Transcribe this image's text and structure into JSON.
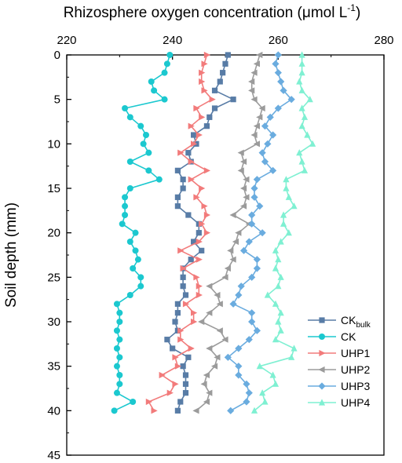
{
  "chart_data": {
    "type": "line",
    "title": "",
    "xlabel": "Rhizosphere oxygen concentration (μmol L⁻¹)",
    "xlabel_parts": {
      "main": "Rhizosphere oxygen concentration (μmol L",
      "sup": "-1",
      "end": ")"
    },
    "ylabel": "Soil depth (mm)",
    "xlim": [
      220,
      280
    ],
    "ylim": [
      0,
      45
    ],
    "y_inverted": true,
    "x_axis_position": "top",
    "x_ticks": [
      "220",
      "240",
      "260",
      "280"
    ],
    "y_ticks": [
      "0",
      "5",
      "10",
      "15",
      "20",
      "25",
      "30",
      "35",
      "40",
      "45"
    ],
    "grid": false,
    "legend_position": "bottom-right",
    "depth": [
      0,
      1,
      2,
      3,
      4,
      5,
      6,
      7,
      8,
      9,
      10,
      11,
      12,
      13,
      14,
      15,
      16,
      17,
      18,
      19,
      20,
      21,
      22,
      23,
      24,
      25,
      26,
      27,
      28,
      29,
      30,
      31,
      32,
      33,
      34,
      35,
      36,
      37,
      38,
      39,
      40
    ],
    "series": [
      {
        "name": "CK_bulk",
        "legend_main": "CK",
        "legend_sub": "bulk",
        "color": "#587ca6",
        "marker": "square",
        "values": [
          250.5,
          250,
          249.5,
          249,
          248,
          251.5,
          248,
          247,
          246.5,
          244,
          244.5,
          243,
          243.5,
          241,
          242,
          242,
          241,
          241,
          243,
          245,
          245,
          244,
          245.5,
          243.5,
          242,
          242,
          242,
          242.5,
          241,
          241,
          240.5,
          241,
          239,
          240,
          243,
          242,
          242.5,
          242.5,
          242.5,
          241.5,
          241
        ]
      },
      {
        "name": "CK",
        "legend_main": "CK",
        "legend_sub": "",
        "color": "#1bc8cf",
        "marker": "circle",
        "values": [
          239.5,
          239,
          238.5,
          236,
          236.5,
          238.5,
          231,
          232,
          234,
          235,
          234.5,
          235.5,
          232,
          235.5,
          237.5,
          232,
          231,
          231,
          231,
          230.5,
          233,
          232,
          233,
          233.5,
          232.5,
          234,
          234,
          232,
          229.5,
          230,
          230,
          229.5,
          230,
          229.5,
          230,
          229.5,
          230,
          230,
          229.5,
          232.5,
          229
        ]
      },
      {
        "name": "UHP1",
        "legend_main": "UHP1",
        "legend_sub": "",
        "color": "#f27b7b",
        "marker": "triangle-right",
        "values": [
          246.5,
          246,
          245.5,
          245.5,
          246,
          247.5,
          244.5,
          245.5,
          243.5,
          245,
          244,
          241.5,
          243.5,
          246.5,
          243.5,
          245.5,
          244.5,
          246,
          246.5,
          245.5,
          246.5,
          245,
          241.5,
          245,
          242,
          244.5,
          245,
          245,
          242.5,
          244,
          244,
          241.5,
          241.5,
          243.5,
          240.5,
          241,
          238,
          240.5,
          239.5,
          235.5,
          236.5
        ]
      },
      {
        "name": "UHP2",
        "legend_main": "UHP2",
        "legend_sub": "",
        "color": "#9b9b9b",
        "marker": "triangle-left",
        "values": [
          256.5,
          256,
          255.5,
          255,
          255,
          255.5,
          257,
          256.5,
          256,
          255.5,
          256,
          253,
          253.5,
          253,
          254,
          253.5,
          254,
          253.5,
          251.5,
          254.5,
          252.5,
          252,
          251,
          251.5,
          250.5,
          250,
          247,
          248.5,
          249,
          247,
          245.5,
          249,
          250,
          247,
          248.5,
          248,
          246.5,
          246,
          247,
          246.5,
          244.5
        ]
      },
      {
        "name": "UHP3",
        "legend_main": "UHP3",
        "legend_sub": "",
        "color": "#6aacdf",
        "marker": "diamond",
        "values": [
          260,
          259.5,
          260,
          260.5,
          261,
          262.5,
          260,
          258.5,
          257.5,
          259,
          258,
          257,
          257.5,
          259,
          256,
          255.5,
          255.5,
          256.5,
          255,
          255,
          257,
          254.5,
          253.5,
          256,
          256,
          255,
          253,
          252.5,
          251.5,
          255,
          255,
          256,
          254.5,
          252.5,
          250.5,
          252.5,
          252.5,
          254,
          254.5,
          254,
          251
        ]
      },
      {
        "name": "UHP4",
        "legend_main": "UHP4",
        "legend_sub": "",
        "color": "#7ff0d2",
        "marker": "triangle-up",
        "values": [
          264.5,
          264.5,
          264.5,
          264,
          264.5,
          266,
          264.5,
          265,
          264.5,
          265.5,
          266.5,
          264,
          264.5,
          265,
          261.5,
          261.5,
          262,
          263,
          261,
          261,
          262,
          260.5,
          259.5,
          260,
          259.5,
          260.5,
          260,
          258,
          259.5,
          260.5,
          260,
          260.5,
          259.5,
          263,
          262.5,
          256.5,
          259,
          259.5,
          257,
          257.5,
          255.5
        ]
      }
    ]
  }
}
